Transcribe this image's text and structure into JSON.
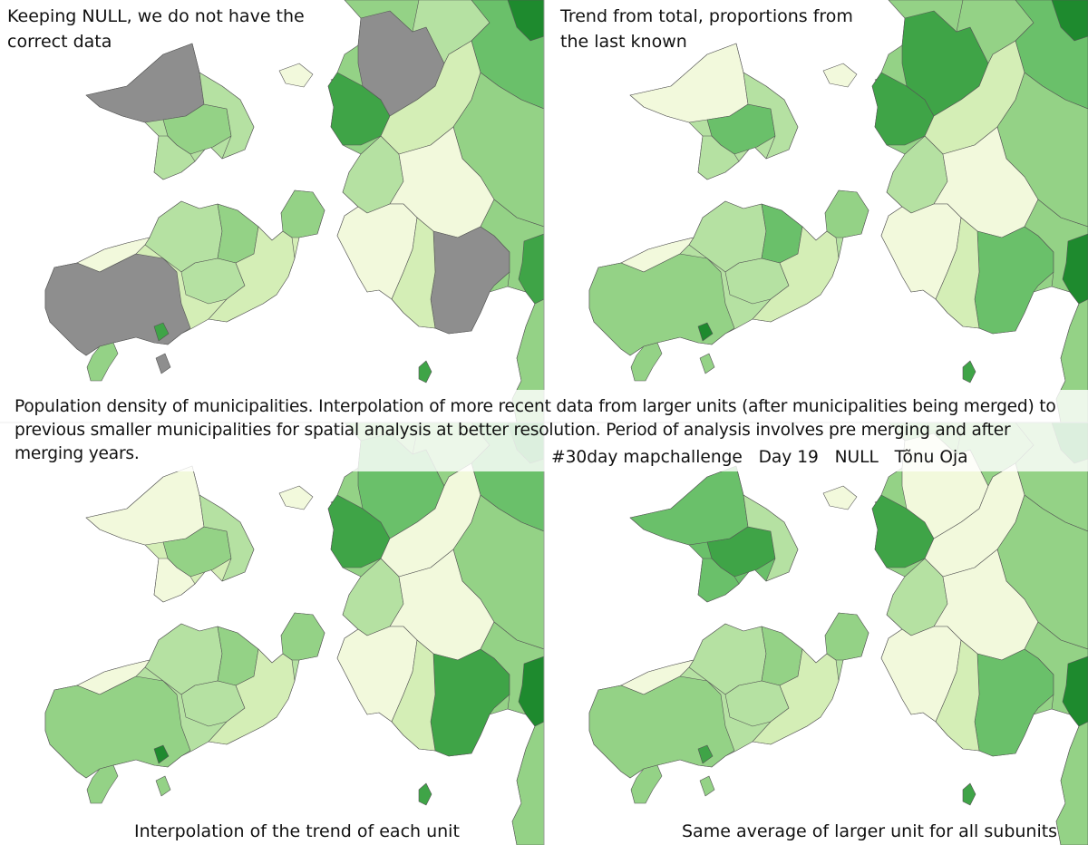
{
  "panels": [
    {
      "id": "null",
      "title": "Keeping NULL, we do not have the\ncorrect data",
      "caption": ""
    },
    {
      "id": "trend-total",
      "title": "Trend from total, proportions from\nthe last known",
      "caption": ""
    },
    {
      "id": "trend-each",
      "title": "",
      "caption": "Interpolation of the trend of each unit"
    },
    {
      "id": "same-average",
      "title": "",
      "caption": "Same average of larger unit for all subunits"
    }
  ],
  "caption": {
    "text": "Population density of municipalities. Interpolation of more recent data from larger units (after municipalities being merged) to previous smaller municipalities for spatial analysis at better resolution. Period of analysis involves pre merging and after merging years.",
    "credit": "#30day mapchallenge   Day 19   NULL   Tõnu Oja"
  },
  "legend": {
    "colors": {
      "no_data": "#8e8e8e",
      "very_low": "#f2f9dc",
      "low": "#d4eeb6",
      "medium_low": "#b5e1a2",
      "medium": "#94d286",
      "medium_high": "#6ac06a",
      "high": "#3fa447",
      "very_high": "#1e8a2e",
      "extreme": "#0d6a1a",
      "sea": "#ffffff",
      "border": "#555555"
    }
  }
}
